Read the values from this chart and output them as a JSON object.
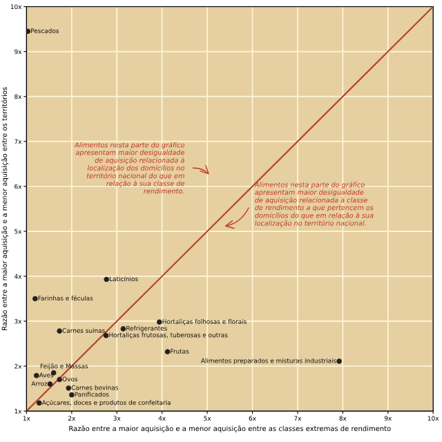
{
  "chart_data": {
    "type": "scatter",
    "xlabel": "Razão entre a maior aquisição e a menor aquisição entre as classes extremas de rendimento",
    "ylabel": "Razão entre a maior aquisição e a menor aquisição entre os territórios",
    "xlim": [
      1,
      10
    ],
    "ylim": [
      1,
      10
    ],
    "xticks": [
      {
        "value": 1,
        "label": "1x"
      },
      {
        "value": 2,
        "label": "2x"
      },
      {
        "value": 3,
        "label": "3x"
      },
      {
        "value": 4,
        "label": "4x"
      },
      {
        "value": 5,
        "label": "5x"
      },
      {
        "value": 6,
        "label": "6x"
      },
      {
        "value": 7,
        "label": "7x"
      },
      {
        "value": 8,
        "label": "8x"
      },
      {
        "value": 9,
        "label": "9x"
      },
      {
        "value": 10,
        "label": "10x"
      }
    ],
    "yticks": [
      {
        "value": 1,
        "label": "1x"
      },
      {
        "value": 2,
        "label": "2x"
      },
      {
        "value": 3,
        "label": "3x"
      },
      {
        "value": 4,
        "label": "4x"
      },
      {
        "value": 5,
        "label": "5x"
      },
      {
        "value": 6,
        "label": "6x"
      },
      {
        "value": 7,
        "label": "7x"
      },
      {
        "value": 8,
        "label": "8x"
      },
      {
        "value": 9,
        "label": "9x"
      },
      {
        "value": 10,
        "label": "10x"
      }
    ],
    "grid": true,
    "series": [
      {
        "marker": "circle",
        "color": "#222222",
        "x": [
          1.03,
          2.77,
          1.19,
          1.73,
          3.14,
          3.94,
          2.76,
          4.12,
          7.92,
          1.6,
          1.22,
          1.52,
          1.73,
          1.93,
          2.0,
          1.28
        ],
        "values": [
          9.45,
          3.93,
          3.5,
          2.78,
          2.83,
          2.98,
          2.68,
          2.32,
          2.11,
          1.85,
          1.79,
          1.6,
          1.7,
          1.51,
          1.36,
          1.18
        ],
        "value_labels": [
          "Pescados",
          "Laticínios",
          "Farinhas e féculas",
          "Carnes suínas",
          "Refrigerantes",
          "Hortaliças folhosas e florais",
          "Hortaliças frutosas, tuberosas e outras",
          "Frutas",
          "Alimentos preparados e misturas industriais",
          "Feijão e Massas",
          "Aves",
          "Arroz",
          "Ovos",
          "Carnes bovinas",
          "Panificados",
          "Açúcares, doces e produtos de confeitaria"
        ]
      },
      {
        "type": "line",
        "marker": "none",
        "color": "#b5452b",
        "x": [
          1,
          10
        ],
        "values": [
          1,
          10
        ]
      }
    ],
    "annotations": [
      "Alimentos nesta parte do gráfico apresentam maior desigualdade de aquisição relacionada à localização dos domicílios no território nacional do que em relação à sua classe de rendimento.",
      "Alimentos nesta parte do gráfico apresentam maior desigualdade de aquisição relacionada à classe de rendimento a que pertencem os domicílios do que em relação à sua localização no território nacional."
    ]
  }
}
